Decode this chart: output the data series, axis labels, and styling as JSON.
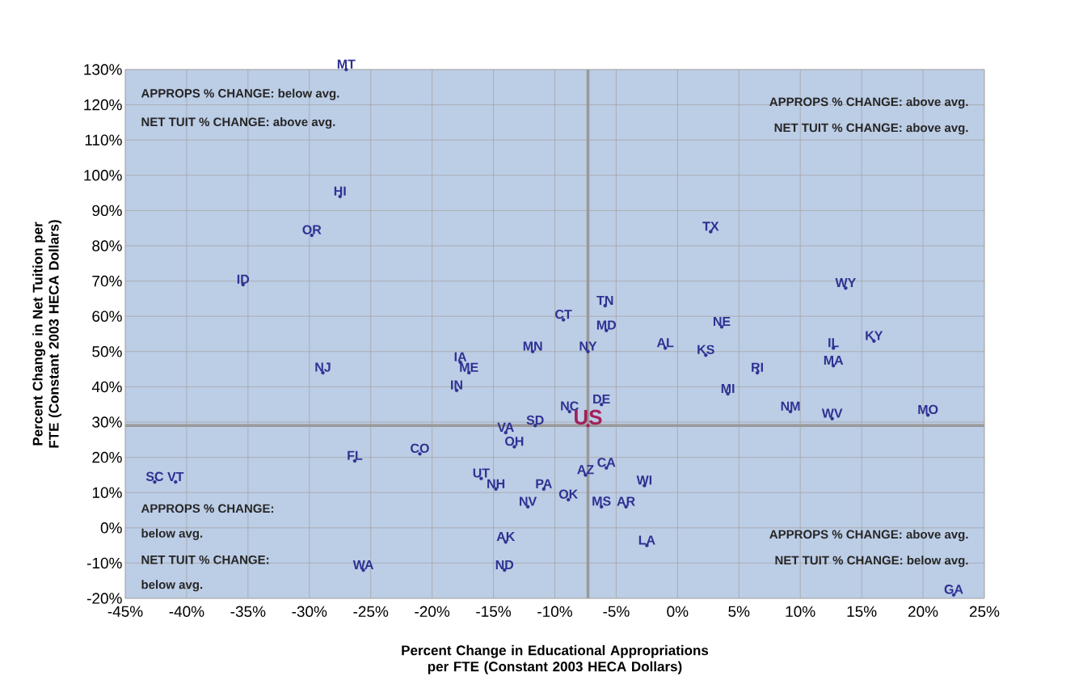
{
  "chart_data": {
    "type": "scatter",
    "xlabel": "Percent Change in Educational Appropriations per FTE (Constant 2003 HECA Dollars)",
    "ylabel": "Percent Change in Net Tuition per FTE (Constant 2003 HECA Dollars)",
    "xlim": [
      -45,
      25
    ],
    "ylim": [
      -20,
      130
    ],
    "xticks": [
      {
        "value": -45,
        "label": "-45%"
      },
      {
        "value": -40,
        "label": "-40%"
      },
      {
        "value": -35,
        "label": "-35%"
      },
      {
        "value": -30,
        "label": "-30%"
      },
      {
        "value": -25,
        "label": "-25%"
      },
      {
        "value": -20,
        "label": "-20%"
      },
      {
        "value": -15,
        "label": "-15%"
      },
      {
        "value": -10,
        "label": "-10%"
      },
      {
        "value": -5,
        "label": "-5%"
      },
      {
        "value": 0,
        "label": "0%"
      },
      {
        "value": 5,
        "label": "5%"
      },
      {
        "value": 10,
        "label": "10%"
      },
      {
        "value": 15,
        "label": "15%"
      },
      {
        "value": 20,
        "label": "20%"
      },
      {
        "value": 25,
        "label": "25%"
      }
    ],
    "yticks": [
      {
        "value": -20,
        "label": "-20%"
      },
      {
        "value": -10,
        "label": "-10%"
      },
      {
        "value": 0,
        "label": "0%"
      },
      {
        "value": 10,
        "label": "10%"
      },
      {
        "value": 20,
        "label": "20%"
      },
      {
        "value": 30,
        "label": "30%"
      },
      {
        "value": 40,
        "label": "40%"
      },
      {
        "value": 50,
        "label": "50%"
      },
      {
        "value": 60,
        "label": "60%"
      },
      {
        "value": 70,
        "label": "70%"
      },
      {
        "value": 80,
        "label": "80%"
      },
      {
        "value": 90,
        "label": "90%"
      },
      {
        "value": 100,
        "label": "100%"
      },
      {
        "value": 110,
        "label": "110%"
      },
      {
        "value": 120,
        "label": "120%"
      },
      {
        "value": 130,
        "label": "130%"
      }
    ],
    "grid": true,
    "marker": "circle",
    "series": [
      {
        "color": "#2e3192",
        "x": [
          -27.0,
          -27.5,
          -29.8,
          -35.4,
          -28.9,
          -17.7,
          -17.0,
          -18.0,
          -11.8,
          -9.3,
          -7.3,
          -5.9,
          -5.8,
          -1.0,
          2.7,
          3.6,
          2.3,
          6.5,
          4.1,
          13.7,
          16.0,
          12.7,
          12.7,
          9.2,
          12.6,
          20.4,
          -8.8,
          -6.2,
          -11.6,
          -14.0,
          -13.3,
          -26.3,
          -21.0,
          -42.6,
          -40.9,
          -16.0,
          -14.8,
          -10.9,
          -12.2,
          -8.9,
          -7.5,
          -5.8,
          -2.7,
          -6.2,
          -4.2,
          -2.5,
          -14.0,
          -14.1,
          -25.6,
          22.5
        ],
        "values": [
          130,
          94,
          83,
          69,
          44,
          47,
          44,
          39,
          50,
          59,
          50,
          63,
          56,
          51,
          84,
          57,
          49,
          44,
          38,
          68,
          53,
          51,
          46,
          33,
          31,
          32,
          33,
          35,
          29,
          27,
          23,
          19,
          21,
          13,
          13,
          14,
          11,
          11,
          6,
          8,
          15,
          17,
          12,
          6,
          6,
          -5,
          -4,
          -12,
          -12,
          -19
        ],
        "value_labels": [
          "MT",
          "HI",
          "OR",
          "ID",
          "NJ",
          "IA",
          "ME",
          "IN",
          "MN",
          "CT",
          "NY",
          "TN",
          "MD",
          "AL",
          "TX",
          "NE",
          "KS",
          "RI",
          "MI",
          "WY",
          "KY",
          "IL",
          "MA",
          "NM",
          "WV",
          "MO",
          "NC",
          "DE",
          "SD",
          "VA",
          "OH",
          "FL",
          "CO",
          "SC",
          "VT",
          "UT",
          "NH",
          "PA",
          "NV",
          "OK",
          "AZ",
          "CA",
          "WI",
          "MS",
          "AR",
          "LA",
          "AK",
          "ND",
          "WA",
          "GA"
        ]
      },
      {
        "color": "#a3205a",
        "x": [
          -7.3
        ],
        "values": [
          29
        ],
        "value_labels": [
          "US"
        ]
      }
    ],
    "ref_lines": [
      {
        "axis": "x",
        "value": -7.3,
        "color": "#999999"
      },
      {
        "axis": "y",
        "value": 29,
        "color": "#999999"
      }
    ],
    "annotations": [
      "APPROPS % CHANGE: below avg.",
      "NET TUIT % CHANGE: above avg.",
      "APPROPS % CHANGE: above avg.",
      "NET TUIT % CHANGE: above avg.",
      "APPROPS % CHANGE:",
      "below avg.",
      "NET TUIT % CHANGE:",
      "below avg.",
      "APPROPS % CHANGE: above avg.",
      "NET TUIT % CHANGE: below avg."
    ]
  }
}
